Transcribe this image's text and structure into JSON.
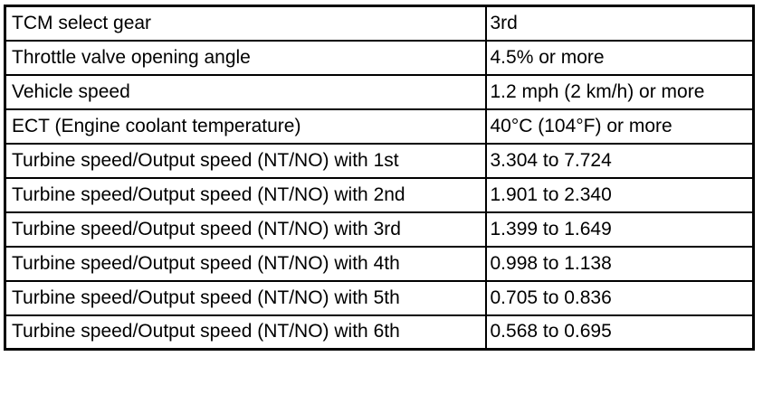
{
  "table": {
    "rows": [
      [
        "TCM select gear",
        "3rd"
      ],
      [
        "Throttle valve opening angle",
        "4.5% or more"
      ],
      [
        "Vehicle speed",
        "1.2 mph (2 km/h) or more"
      ],
      [
        "ECT (Engine coolant temperature)",
        "40°C (104°F) or more"
      ],
      [
        "Turbine speed/Output speed (NT/NO) with 1st",
        "3.304 to 7.724"
      ],
      [
        "Turbine speed/Output speed (NT/NO) with 2nd",
        "1.901 to 2.340"
      ],
      [
        "Turbine speed/Output speed (NT/NO) with 3rd",
        "1.399 to 1.649"
      ],
      [
        "Turbine speed/Output speed (NT/NO) with 4th",
        "0.998 to 1.138"
      ],
      [
        "Turbine speed/Output speed (NT/NO) with 5th",
        "0.705 to 0.836"
      ],
      [
        "Turbine speed/Output speed (NT/NO) with 6th",
        "0.568 to 0.695"
      ]
    ]
  }
}
